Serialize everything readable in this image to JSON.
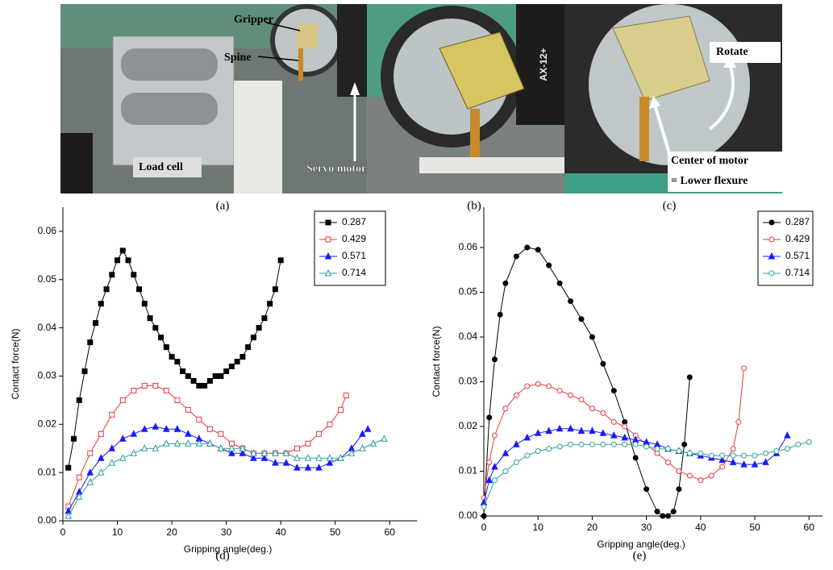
{
  "figure": {
    "panels": [
      {
        "label": "(a)",
        "annotations": [
          "Gripper",
          "Spine",
          "Servo motor",
          "Load cell"
        ]
      },
      {
        "label": "(b)",
        "annotations": [
          "AX-12+"
        ]
      },
      {
        "label": "(c)",
        "annotations": [
          "Rotate",
          "Center of motor",
          "= Lower flexure"
        ]
      }
    ]
  },
  "chart_data": [
    {
      "type": "line",
      "caption": "(d)",
      "x_label": "Gripping angle(deg.)",
      "y_label": "Contact force(N)",
      "xlim": [
        0,
        65
      ],
      "ylim": [
        0,
        0.065
      ],
      "xticks": [
        0,
        10,
        20,
        30,
        40,
        50,
        60
      ],
      "yticks": [
        {
          "value": 0,
          "label": "0.00"
        },
        0.01,
        0.02,
        0.03,
        0.04,
        0.05,
        0.06
      ],
      "legend": "upper right",
      "series": [
        {
          "name": "0.287",
          "color": "#000000",
          "marker": "square",
          "filled": true,
          "x": [
            1,
            2,
            3,
            4,
            5,
            6,
            7,
            8,
            9,
            10,
            11,
            12,
            13,
            14,
            15,
            16,
            17,
            18,
            19,
            20,
            21,
            22,
            23,
            24,
            25,
            26,
            27,
            28,
            29,
            30,
            31,
            32,
            33,
            34,
            35,
            36,
            37,
            38,
            39,
            40
          ],
          "values": [
            0.011,
            0.017,
            0.025,
            0.031,
            0.037,
            0.041,
            0.045,
            0.048,
            0.051,
            0.054,
            0.056,
            0.054,
            0.051,
            0.048,
            0.045,
            0.042,
            0.04,
            0.038,
            0.036,
            0.034,
            0.033,
            0.031,
            0.03,
            0.029,
            0.028,
            0.028,
            0.029,
            0.03,
            0.03,
            0.031,
            0.032,
            0.033,
            0.034,
            0.036,
            0.038,
            0.04,
            0.042,
            0.045,
            0.048,
            0.054
          ]
        },
        {
          "name": "0.429",
          "color": "#e8383d",
          "marker": "square",
          "filled": false,
          "x": [
            1,
            3,
            5,
            7,
            9,
            11,
            13,
            15,
            17,
            19,
            21,
            23,
            25,
            27,
            29,
            31,
            33,
            35,
            37,
            39,
            41,
            43,
            45,
            47,
            49,
            51,
            52
          ],
          "values": [
            0.003,
            0.009,
            0.014,
            0.018,
            0.022,
            0.025,
            0.027,
            0.028,
            0.028,
            0.027,
            0.025,
            0.023,
            0.021,
            0.019,
            0.018,
            0.016,
            0.015,
            0.014,
            0.014,
            0.014,
            0.014,
            0.015,
            0.016,
            0.018,
            0.02,
            0.023,
            0.026
          ]
        },
        {
          "name": "0.571",
          "color": "#1a1aff",
          "marker": "triangle",
          "filled": true,
          "x": [
            1,
            3,
            5,
            7,
            9,
            11,
            13,
            15,
            17,
            19,
            21,
            23,
            25,
            27,
            29,
            31,
            33,
            35,
            37,
            39,
            41,
            43,
            45,
            47,
            49,
            51,
            53,
            55,
            56
          ],
          "values": [
            0.002,
            0.006,
            0.01,
            0.013,
            0.015,
            0.017,
            0.018,
            0.019,
            0.0195,
            0.019,
            0.019,
            0.018,
            0.017,
            0.016,
            0.015,
            0.014,
            0.014,
            0.013,
            0.013,
            0.012,
            0.012,
            0.011,
            0.011,
            0.011,
            0.012,
            0.013,
            0.015,
            0.018,
            0.019
          ]
        },
        {
          "name": "0.714",
          "color": "#2aa198",
          "marker": "triangle",
          "filled": false,
          "x": [
            1,
            3,
            5,
            7,
            9,
            11,
            13,
            15,
            17,
            19,
            21,
            23,
            25,
            27,
            29,
            31,
            33,
            35,
            37,
            39,
            41,
            43,
            45,
            47,
            49,
            51,
            53,
            55,
            57,
            59
          ],
          "values": [
            0.001,
            0.005,
            0.008,
            0.01,
            0.012,
            0.013,
            0.014,
            0.015,
            0.015,
            0.016,
            0.016,
            0.016,
            0.016,
            0.016,
            0.015,
            0.015,
            0.015,
            0.014,
            0.014,
            0.014,
            0.014,
            0.013,
            0.013,
            0.013,
            0.013,
            0.013,
            0.014,
            0.015,
            0.016,
            0.017
          ]
        }
      ]
    },
    {
      "type": "line",
      "caption": "(e)",
      "x_label": "Gripping angle(deg.)",
      "y_label": "Contact force(N)",
      "xlim": [
        0,
        62.5
      ],
      "ylim": [
        0,
        0.069
      ],
      "xticks": [
        0,
        10,
        20,
        30,
        40,
        50,
        60
      ],
      "yticks": [
        {
          "value": 0,
          "label": "0.00"
        },
        0.01,
        0.02,
        0.03,
        0.04,
        0.05,
        0.06
      ],
      "legend": "upper right",
      "series": [
        {
          "name": "0.287",
          "color": "#000000",
          "marker": "circle",
          "filled": true,
          "x": [
            0,
            1,
            2,
            3,
            4,
            6,
            8,
            10,
            12,
            14,
            16,
            18,
            20,
            22,
            24,
            26,
            28,
            30,
            32,
            33,
            34,
            35,
            36,
            37,
            38
          ],
          "values": [
            0.0,
            0.022,
            0.035,
            0.045,
            0.052,
            0.058,
            0.06,
            0.0595,
            0.056,
            0.052,
            0.048,
            0.044,
            0.04,
            0.034,
            0.028,
            0.021,
            0.013,
            0.006,
            0.001,
            0.0,
            0.0,
            0.001,
            0.006,
            0.016,
            0.031
          ]
        },
        {
          "name": "0.429",
          "color": "#e8383d",
          "marker": "circle",
          "filled": false,
          "x": [
            0,
            1,
            2,
            4,
            6,
            8,
            10,
            12,
            14,
            16,
            18,
            20,
            22,
            24,
            26,
            28,
            30,
            32,
            34,
            36,
            38,
            40,
            42,
            44,
            46,
            47,
            48
          ],
          "values": [
            0.004,
            0.012,
            0.018,
            0.024,
            0.027,
            0.029,
            0.0295,
            0.029,
            0.028,
            0.027,
            0.026,
            0.024,
            0.023,
            0.021,
            0.02,
            0.018,
            0.016,
            0.014,
            0.012,
            0.01,
            0.009,
            0.008,
            0.009,
            0.011,
            0.015,
            0.021,
            0.033
          ]
        },
        {
          "name": "0.571",
          "color": "#1a1aff",
          "marker": "triangle",
          "filled": true,
          "x": [
            0,
            1,
            2,
            4,
            6,
            8,
            10,
            12,
            14,
            16,
            18,
            20,
            22,
            24,
            26,
            28,
            30,
            32,
            34,
            36,
            38,
            40,
            42,
            44,
            46,
            48,
            50,
            52,
            54,
            56
          ],
          "values": [
            0.003,
            0.008,
            0.011,
            0.014,
            0.016,
            0.0175,
            0.0185,
            0.019,
            0.0195,
            0.0195,
            0.019,
            0.019,
            0.0185,
            0.018,
            0.0175,
            0.017,
            0.0165,
            0.016,
            0.015,
            0.0145,
            0.014,
            0.0135,
            0.013,
            0.0125,
            0.012,
            0.0115,
            0.0115,
            0.012,
            0.014,
            0.018
          ]
        },
        {
          "name": "0.714",
          "color": "#2aa198",
          "marker": "circle",
          "filled": false,
          "x": [
            0,
            2,
            4,
            6,
            8,
            10,
            12,
            14,
            16,
            18,
            20,
            22,
            24,
            26,
            28,
            30,
            32,
            34,
            36,
            38,
            40,
            42,
            44,
            46,
            48,
            50,
            52,
            54,
            56,
            58,
            60
          ],
          "values": [
            0.002,
            0.008,
            0.01,
            0.012,
            0.0135,
            0.0145,
            0.015,
            0.0155,
            0.016,
            0.016,
            0.016,
            0.016,
            0.016,
            0.016,
            0.016,
            0.0155,
            0.015,
            0.015,
            0.0145,
            0.014,
            0.014,
            0.0135,
            0.0135,
            0.0135,
            0.0135,
            0.0135,
            0.014,
            0.0145,
            0.015,
            0.016,
            0.0165
          ]
        }
      ]
    }
  ]
}
